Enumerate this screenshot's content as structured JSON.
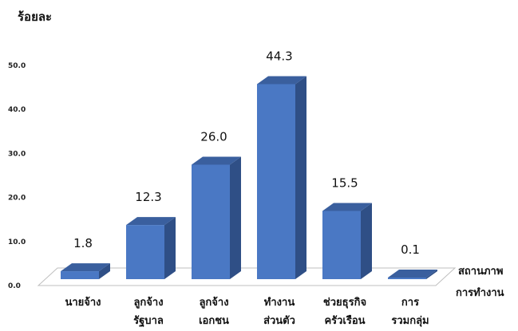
{
  "chart_data": {
    "type": "bar",
    "ylabel": "ร้อยละ",
    "xlabel": [
      "สถานภาพ",
      "การทำงาน"
    ],
    "ylim": [
      0,
      50
    ],
    "yticks": [
      "0.0",
      "10.0",
      "20.0",
      "30.0",
      "40.0",
      "50.0"
    ],
    "categories": [
      [
        "นายจ้าง"
      ],
      [
        "ลูกจ้าง",
        "รัฐบาล"
      ],
      [
        "ลูกจ้าง",
        "เอกชน"
      ],
      [
        "ทำงาน",
        "ส่วนตัว"
      ],
      [
        "ช่วยธุรกิจ",
        "ครัวเรือน"
      ],
      [
        "การ",
        "รวมกลุ่ม"
      ]
    ],
    "values": [
      1.8,
      12.3,
      26.0,
      44.3,
      15.5,
      0.1
    ],
    "value_labels": [
      "1.8",
      "12.3",
      "26.0",
      "44.3",
      "15.5",
      "0.1"
    ],
    "bar_color": "#4a78c4",
    "grid": false,
    "legend": "none"
  }
}
